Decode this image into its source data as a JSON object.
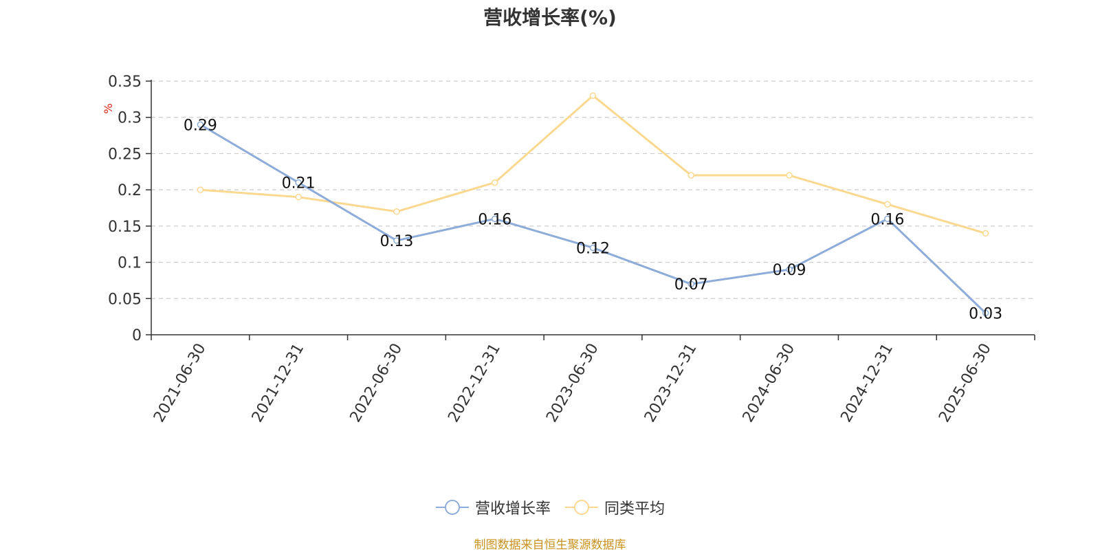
{
  "chart_data": {
    "type": "line",
    "title": "营收增长率(%)",
    "ylabel": "%",
    "categories": [
      "2021-06-30",
      "2021-12-31",
      "2022-06-30",
      "2022-12-31",
      "2023-06-30",
      "2023-12-31",
      "2024-06-30",
      "2024-12-31",
      "2025-06-30"
    ],
    "ylim": [
      0,
      0.35
    ],
    "yticks": [
      "0",
      "0.05",
      "0.1",
      "0.15",
      "0.2",
      "0.25",
      "0.3",
      "0.35"
    ],
    "grid": true,
    "legend_position": "bottom",
    "series": [
      {
        "name": "营收增长率",
        "color": "#8eacd9",
        "values": [
          0.29,
          0.21,
          0.13,
          0.16,
          0.12,
          0.07,
          0.09,
          0.16,
          0.03
        ],
        "data_labels": true
      },
      {
        "name": "同类平均",
        "color": "#fbd890",
        "values": [
          0.2,
          0.19,
          0.17,
          0.21,
          0.33,
          0.22,
          0.22,
          0.18,
          0.14
        ],
        "data_labels": false
      }
    ]
  },
  "source_text": "制图数据来自恒生聚源数据库",
  "colors": {
    "source": "#c8921e",
    "ylabel": "#e0201c",
    "axis": "#333333",
    "grid": "#cccccc"
  }
}
